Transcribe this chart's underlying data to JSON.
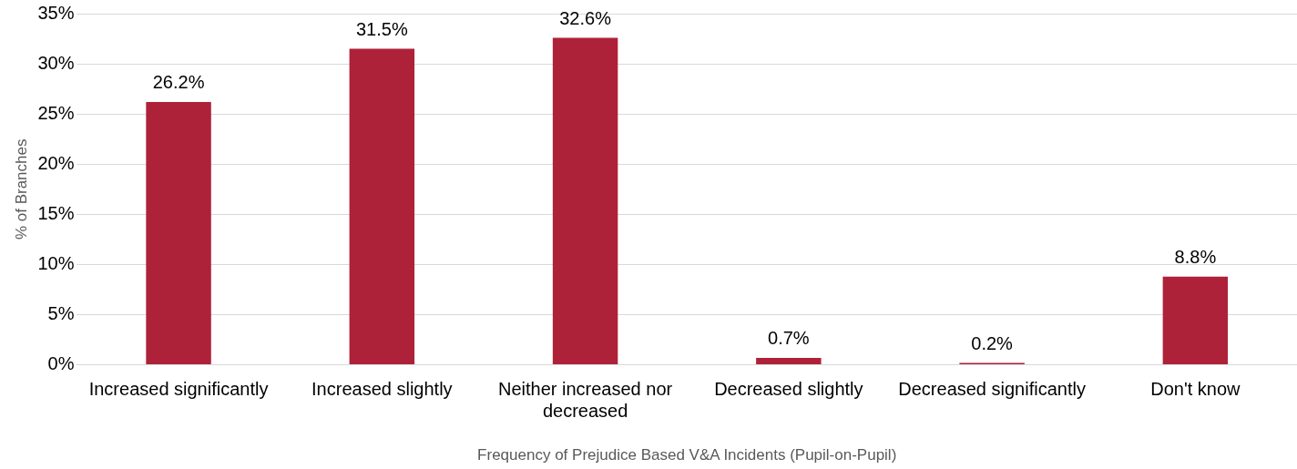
{
  "chart_data": {
    "type": "bar",
    "xlabel": "Frequency of Prejudice Based V&A Incidents (Pupil-on-Pupil)",
    "ylabel": "% of Branches",
    "categories": [
      "Increased significantly",
      "Increased slightly",
      "Neither increased nor decreased",
      "Decreased slightly",
      "Decreased significantly",
      "Don't know"
    ],
    "values": [
      26.2,
      31.5,
      32.6,
      0.7,
      0.2,
      8.8
    ],
    "value_labels": [
      "26.2%",
      "31.5%",
      "32.6%",
      "0.7%",
      "0.2%",
      "8.8%"
    ],
    "color": "#ae2239",
    "ylim": [
      0,
      35
    ],
    "yticks": [
      {
        "value": 0,
        "label": "0%"
      },
      {
        "value": 5,
        "label": "5%"
      },
      {
        "value": 10,
        "label": "10%"
      },
      {
        "value": 15,
        "label": "15%"
      },
      {
        "value": 20,
        "label": "20%"
      },
      {
        "value": 25,
        "label": "25%"
      },
      {
        "value": 30,
        "label": "30%"
      },
      {
        "value": 35,
        "label": "35%"
      }
    ],
    "grid": "y",
    "legend": false
  }
}
